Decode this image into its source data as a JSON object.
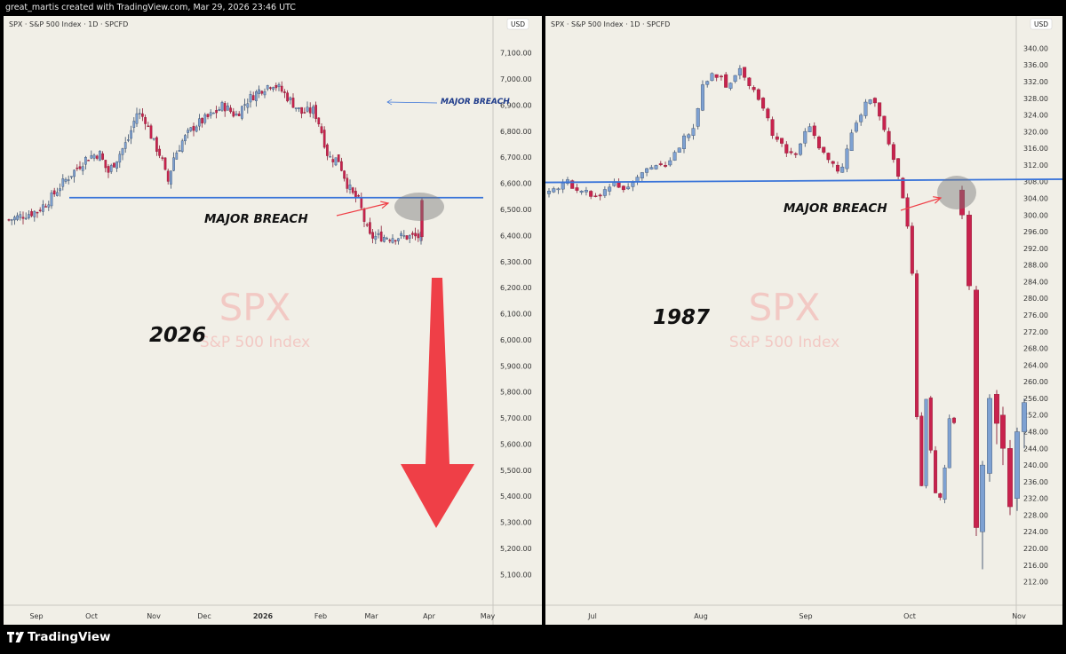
{
  "header": {
    "attribution": "great_martis created with TradingView.com, Mar 29, 2026 23:46 UTC"
  },
  "footer": {
    "brand": "TradingView"
  },
  "chart_data": [
    {
      "type": "candlestick",
      "title": "SPX · S&P 500 Index · 1D · SPCFD",
      "currency": "USD",
      "watermark": {
        "ticker": "SPX",
        "name": "S&P 500 Index"
      },
      "year_label": "2026",
      "ylim": [
        5040,
        7150
      ],
      "y_ticks": [
        "7,100.00",
        "7,000.00",
        "6,900.00",
        "6,800.00",
        "6,700.00",
        "6,600.00",
        "6,500.00",
        "6,400.00",
        "6,300.00",
        "6,200.00",
        "6,100.00",
        "6,000.00",
        "5,900.00",
        "5,800.00",
        "5,700.00",
        "5,600.00",
        "5,500.00",
        "5,400.00",
        "5,300.00",
        "5,200.00",
        "5,100.00"
      ],
      "x_ticks": [
        "Sep",
        "Oct",
        "Nov",
        "Dec",
        "2026",
        "Feb",
        "Mar",
        "Apr",
        "May"
      ],
      "support_level": 6545,
      "annotations": [
        "MAJOR BREACH",
        "MAJOR BREACH"
      ],
      "close_path": [
        [
          0,
          6460
        ],
        [
          0.04,
          6480
        ],
        [
          0.07,
          6495
        ],
        [
          0.1,
          6540
        ],
        [
          0.13,
          6600
        ],
        [
          0.16,
          6650
        ],
        [
          0.19,
          6700
        ],
        [
          0.22,
          6715
        ],
        [
          0.24,
          6640
        ],
        [
          0.26,
          6690
        ],
        [
          0.29,
          6770
        ],
        [
          0.31,
          6870
        ],
        [
          0.33,
          6850
        ],
        [
          0.35,
          6760
        ],
        [
          0.37,
          6700
        ],
        [
          0.385,
          6600
        ],
        [
          0.4,
          6700
        ],
        [
          0.42,
          6760
        ],
        [
          0.45,
          6820
        ],
        [
          0.48,
          6850
        ],
        [
          0.5,
          6870
        ],
        [
          0.52,
          6900
        ],
        [
          0.55,
          6860
        ],
        [
          0.58,
          6920
        ],
        [
          0.61,
          6960
        ],
        [
          0.64,
          6985
        ],
        [
          0.665,
          6950
        ],
        [
          0.69,
          6905
        ],
        [
          0.71,
          6870
        ],
        [
          0.74,
          6880
        ],
        [
          0.755,
          6820
        ],
        [
          0.775,
          6700
        ],
        [
          0.8,
          6690
        ],
        [
          0.82,
          6600
        ],
        [
          0.835,
          6555
        ],
        [
          0.85,
          6530
        ],
        [
          0.865,
          6440
        ],
        [
          0.875,
          6395
        ]
      ],
      "colors": {
        "up": "#7ea1d2",
        "down": "#c8224d",
        "support": "#3a74d9",
        "arrow": "#ef3f47",
        "text_blue": "#1d3a8a"
      }
    },
    {
      "type": "candlestick",
      "title": "SPX · S&P 500 Index · 1D · SPCFD",
      "currency": "USD",
      "watermark": {
        "ticker": "SPX",
        "name": "S&P 500 Index"
      },
      "year_label": "1987",
      "ylim": [
        210,
        342
      ],
      "y_ticks": [
        "340.00",
        "336.00",
        "332.00",
        "328.00",
        "324.00",
        "320.00",
        "316.00",
        "312.00",
        "308.00",
        "304.00",
        "300.00",
        "296.00",
        "292.00",
        "288.00",
        "284.00",
        "280.00",
        "276.00",
        "272.00",
        "268.00",
        "264.00",
        "260.00",
        "256.00",
        "252.00",
        "248.00",
        "244.00",
        "240.00",
        "236.00",
        "232.00",
        "228.00",
        "224.00",
        "220.00",
        "216.00",
        "212.00"
      ],
      "x_ticks": [
        "Jul",
        "Aug",
        "Sep",
        "Oct",
        "Nov"
      ],
      "support_level": 308.2,
      "annotations": [
        "MAJOR BREACH"
      ],
      "close_path": [
        [
          0,
          305
        ],
        [
          0.04,
          308
        ],
        [
          0.08,
          306
        ],
        [
          0.12,
          304
        ],
        [
          0.16,
          308
        ],
        [
          0.19,
          306
        ],
        [
          0.22,
          310
        ],
        [
          0.26,
          312
        ],
        [
          0.29,
          311
        ],
        [
          0.33,
          318
        ],
        [
          0.36,
          322
        ],
        [
          0.38,
          332
        ],
        [
          0.41,
          334
        ],
        [
          0.44,
          331
        ],
        [
          0.47,
          335
        ],
        [
          0.5,
          331
        ],
        [
          0.52,
          328
        ],
        [
          0.55,
          320
        ],
        [
          0.58,
          316
        ],
        [
          0.61,
          314
        ],
        [
          0.64,
          322
        ],
        [
          0.67,
          316
        ],
        [
          0.7,
          312
        ],
        [
          0.72,
          309
        ],
        [
          0.74,
          318
        ],
        [
          0.77,
          324
        ],
        [
          0.79,
          328
        ],
        [
          0.81,
          326
        ],
        [
          0.83,
          319
        ],
        [
          0.855,
          312
        ],
        [
          0.87,
          306
        ],
        [
          0.885,
          298
        ],
        [
          0.9,
          283
        ],
        [
          0.915,
          225
        ],
        [
          0.93,
          257
        ],
        [
          0.945,
          240
        ],
        [
          0.96,
          230
        ],
        [
          0.975,
          238
        ],
        [
          0.99,
          252
        ],
        [
          1,
          250
        ]
      ],
      "colors": {
        "up": "#7ea1d2",
        "down": "#c8224d",
        "support": "#3a74d9",
        "arrow": "#ef3f47"
      }
    }
  ]
}
